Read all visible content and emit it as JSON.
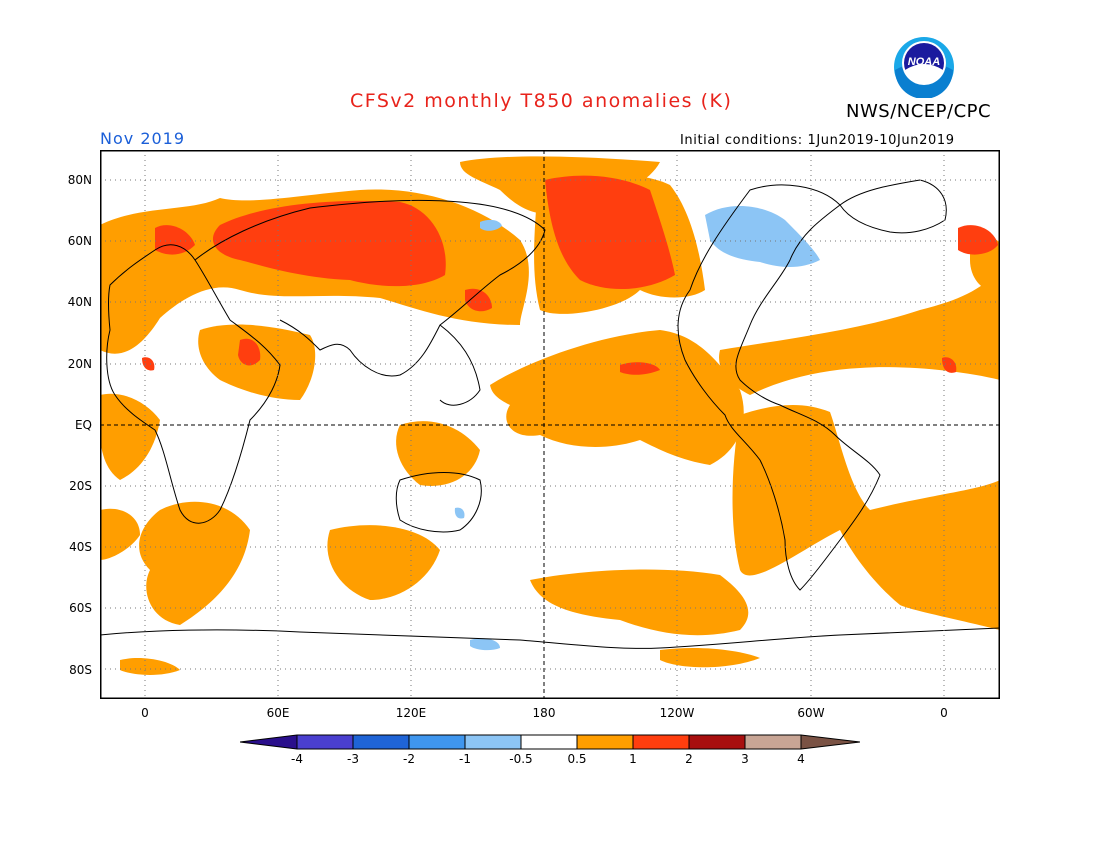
{
  "header": {
    "title": "CFSv2 monthly T850 anomalies (K)",
    "agency": "NWS/NCEP/CPC",
    "logo_text": "NOAA",
    "valid_month": "Nov 2019",
    "initial_conditions": "Initial conditions: 1Jun2019-10Jun2019"
  },
  "lat_labels": [
    "80N",
    "60N",
    "40N",
    "20N",
    "EQ",
    "20S",
    "40S",
    "60S",
    "80S"
  ],
  "lon_labels": [
    "0",
    "60E",
    "120E",
    "180",
    "120W",
    "60W",
    "0"
  ],
  "colorbar": {
    "ticks": [
      "-4",
      "-3",
      "-2",
      "-1",
      "-0.5",
      "0.5",
      "1",
      "2",
      "3",
      "4"
    ],
    "colors": [
      "#2a0f8c",
      "#4a3fcf",
      "#1f64d6",
      "#3f96ee",
      "#8cc5f5",
      "#ffffff",
      "#ff9e00",
      "#ff3e0f",
      "#a80f0f",
      "#c8a595",
      "#7a5244"
    ]
  },
  "colors": {
    "title": "#e8231b",
    "month": "#1b5fd8",
    "anomaly_0_5_to_1": "#ff9e00",
    "anomaly_1_to_2": "#ff3e0f",
    "anomaly_neg_0_5_to_1": "#8cc5f5"
  }
}
